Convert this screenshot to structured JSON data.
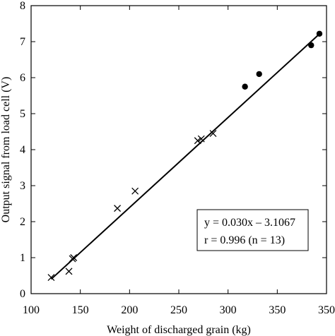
{
  "chart_data": {
    "type": "scatter",
    "xlabel": "Weight of discharged grain (kg)",
    "ylabel": "Output signal from load cell (V)",
    "xlim": [
      100,
      350
    ],
    "ylim": [
      0,
      8
    ],
    "x_ticks": [
      "100",
      "150",
      "200",
      "250",
      "300",
      "350",
      "350"
    ],
    "y_ticks": [
      "0",
      "1",
      "2",
      "3",
      "4",
      "5",
      "6",
      "7",
      "8"
    ],
    "grid": false,
    "legend": "none",
    "series": [
      {
        "marker": "cross",
        "points": [
          {
            "x": 117,
            "y": 0.45
          },
          {
            "x": 132,
            "y": 0.62
          },
          {
            "x": 135,
            "y": 0.97
          },
          {
            "x": 136,
            "y": 1.0
          },
          {
            "x": 173,
            "y": 2.37
          },
          {
            "x": 188,
            "y": 2.85
          },
          {
            "x": 241,
            "y": 4.25
          },
          {
            "x": 244,
            "y": 4.3
          },
          {
            "x": 254,
            "y": 4.45
          }
        ]
      },
      {
        "marker": "dot",
        "points": [
          {
            "x": 281,
            "y": 5.75
          },
          {
            "x": 293,
            "y": 6.1
          },
          {
            "x": 337,
            "y": 6.9
          },
          {
            "x": 344,
            "y": 7.22
          }
        ]
      }
    ],
    "fit_line": {
      "x_start": 117,
      "x_end": 344
    },
    "annotation": {
      "line1": "y = 0.030x – 3.1067",
      "line2": "r = 0.996 (n = 13)"
    }
  }
}
